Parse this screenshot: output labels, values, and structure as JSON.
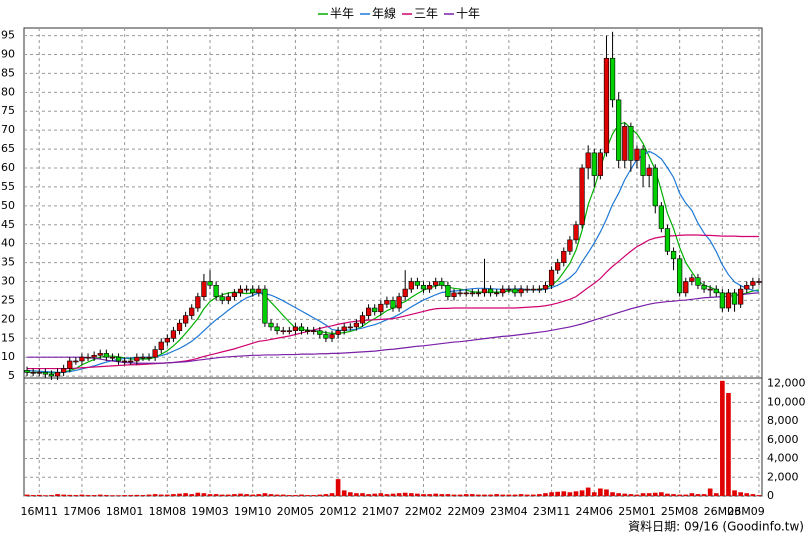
{
  "chart_data": [
    {
      "type": "candlestick",
      "open": [
        6.5,
        6,
        6,
        6,
        5.5,
        5,
        6,
        7,
        9,
        9,
        10,
        10,
        10.5,
        11,
        10,
        10,
        9,
        9,
        9,
        10,
        10,
        10,
        12,
        14,
        15,
        17,
        19,
        21,
        23,
        26,
        30,
        29,
        26,
        25,
        26,
        27,
        28,
        28,
        27,
        28,
        19,
        18,
        17,
        17,
        17,
        18,
        17,
        17,
        17,
        16,
        15,
        16,
        17,
        18,
        18,
        19,
        21,
        23,
        22,
        24,
        25,
        23,
        26,
        28,
        30,
        29,
        28,
        29,
        30,
        29,
        26,
        27,
        27,
        27,
        27,
        27,
        28,
        27,
        27,
        28,
        28,
        27,
        28,
        28,
        28,
        28,
        29,
        33,
        35,
        38,
        41,
        45,
        60,
        64,
        58,
        64,
        89,
        78,
        62,
        71,
        62,
        65,
        58,
        60,
        50,
        44,
        38,
        36,
        27,
        30,
        31,
        29,
        28,
        28,
        27,
        23,
        27,
        24,
        28,
        29,
        30
      ],
      "high": [
        7.5,
        7,
        7,
        7,
        6.5,
        7,
        8,
        10,
        10,
        11,
        11,
        11.5,
        12,
        12,
        11,
        11,
        10,
        10,
        11,
        11,
        11,
        13,
        15,
        16,
        18,
        20,
        22,
        24,
        27,
        32,
        33,
        30,
        27,
        27,
        28,
        29,
        29,
        29,
        29,
        29,
        20,
        19,
        18,
        18,
        19,
        19,
        18,
        18,
        18,
        17,
        17,
        18,
        19,
        19,
        20,
        22,
        24,
        24,
        25,
        26,
        26,
        27,
        33,
        31,
        31,
        30,
        30,
        31,
        31,
        30,
        28,
        28,
        28,
        28,
        28,
        36,
        29,
        28,
        29,
        29,
        29,
        29,
        29,
        29,
        29,
        30,
        34,
        36,
        39,
        42,
        46,
        61,
        66,
        65,
        65,
        95,
        96,
        80,
        72,
        72,
        66,
        66,
        61,
        61,
        51,
        45,
        39,
        37,
        31,
        32,
        32,
        30,
        29,
        29,
        28,
        28,
        28,
        29,
        30,
        31,
        31
      ],
      "low": [
        5,
        5,
        5,
        4.5,
        4,
        4,
        5,
        6,
        8,
        8,
        9,
        9,
        9.5,
        9,
        9,
        8,
        8,
        8,
        8,
        9,
        9,
        9,
        11,
        13,
        14,
        16,
        18,
        20,
        22,
        25,
        28,
        25,
        24,
        24,
        25,
        26,
        27,
        26,
        26,
        18,
        17,
        16,
        16,
        16,
        16,
        16,
        16,
        16,
        15,
        14,
        14,
        15,
        16,
        17,
        17,
        18,
        20,
        21,
        21,
        23,
        22,
        22,
        25,
        27,
        28,
        27,
        27,
        28,
        28,
        25,
        25,
        26,
        26,
        26,
        26,
        26,
        26,
        26,
        26,
        27,
        26,
        26,
        27,
        27,
        27,
        27,
        28,
        32,
        34,
        37,
        40,
        44,
        57,
        55,
        57,
        63,
        76,
        60,
        60,
        59,
        60,
        55,
        55,
        48,
        43,
        37,
        33,
        26,
        26,
        29,
        28,
        27,
        26,
        26,
        22,
        22,
        22,
        23,
        27,
        28,
        29
      ],
      "close": [
        6,
        6,
        6,
        5.5,
        5,
        6,
        7,
        9,
        9,
        10,
        10,
        10.5,
        11,
        10,
        10,
        9,
        9,
        9,
        10,
        10,
        10,
        12,
        14,
        15,
        17,
        19,
        21,
        23,
        26,
        30,
        29,
        26,
        25,
        26,
        27,
        28,
        28,
        27,
        28,
        19,
        18,
        17,
        17,
        17,
        18,
        17,
        17,
        17,
        16,
        15,
        16,
        17,
        18,
        18,
        19,
        21,
        23,
        22,
        24,
        25,
        23,
        26,
        28,
        30,
        29,
        28,
        29,
        30,
        29,
        26,
        27,
        27,
        27,
        27,
        27,
        28,
        27,
        27,
        28,
        28,
        27,
        28,
        28,
        28,
        28,
        29,
        33,
        35,
        38,
        41,
        45,
        60,
        64,
        58,
        64,
        89,
        78,
        62,
        71,
        62,
        65,
        58,
        60,
        50,
        44,
        38,
        36,
        27,
        30,
        31,
        29,
        28,
        28,
        27,
        23,
        27,
        24,
        28,
        29,
        30,
        30
      ],
      "up_color": "#e00000",
      "down_color": "#00d000",
      "ylim": [
        4.5,
        97
      ],
      "yticks": [
        5,
        10,
        15,
        20,
        25,
        30,
        35,
        40,
        45,
        50,
        55,
        60,
        65,
        70,
        75,
        80,
        85,
        90,
        95
      ],
      "grid": true,
      "legend": "top",
      "series": [
        {
          "name": "半年",
          "color": "#00b000",
          "values": [
            6,
            6,
            6,
            6,
            5.8,
            5.8,
            6,
            6.5,
            7,
            8,
            8.7,
            9.4,
            10,
            10.3,
            10.3,
            10.1,
            9.8,
            9.5,
            9.5,
            9.5,
            9.5,
            10,
            10.8,
            11.7,
            13,
            14.5,
            16.3,
            18.2,
            20.2,
            22.8,
            24.7,
            25.8,
            26.5,
            27,
            27.2,
            27,
            26.8,
            27,
            27.3,
            26.2,
            24.5,
            22.8,
            21,
            19.3,
            17.7,
            17.3,
            17.2,
            17,
            16.8,
            16.5,
            16.3,
            16.3,
            16.5,
            16.8,
            17.3,
            18.2,
            19.3,
            20.2,
            21.2,
            22.3,
            23,
            24,
            24.7,
            25.8,
            26.8,
            27.7,
            28.3,
            28.8,
            29.2,
            28.5,
            28.2,
            28,
            27.7,
            27.3,
            27.2,
            27.2,
            27.2,
            27.2,
            27.3,
            27.5,
            27.5,
            27.7,
            27.8,
            27.8,
            28,
            28.2,
            29,
            30.3,
            32.5,
            34.8,
            38.3,
            43.5,
            50.3,
            54.7,
            60,
            65,
            69,
            71.5,
            72,
            70.5,
            69,
            66.5,
            63,
            59.5,
            54,
            48,
            44,
            39,
            35,
            32.5,
            30.2,
            29,
            28.5,
            27.8,
            26.5,
            27,
            26.5,
            26.5,
            27,
            27.5,
            27.8
          ]
        },
        {
          "name": "年線",
          "color": "#1e78d7",
          "values": [
            6.5,
            6.4,
            6.3,
            6.2,
            6.1,
            6,
            6,
            6.2,
            6.5,
            6.9,
            7.3,
            7.7,
            8.2,
            8.7,
            9.1,
            9.4,
            9.7,
            9.8,
            9.9,
            10,
            10,
            10.1,
            10.4,
            10.9,
            11.6,
            12.3,
            13.2,
            14.2,
            15.5,
            17,
            18.5,
            19.9,
            21.1,
            22.4,
            23.6,
            24.7,
            25.7,
            26.3,
            27,
            26.8,
            26.4,
            25.7,
            24.9,
            24,
            23.1,
            22.2,
            21.3,
            20.4,
            19.5,
            18.5,
            17.3,
            17.1,
            17.1,
            17.2,
            17.4,
            17.7,
            18.2,
            18.6,
            19.2,
            19.9,
            20.5,
            21.3,
            22.3,
            23.3,
            24.2,
            25.1,
            25.8,
            26.5,
            27.1,
            27.3,
            27.5,
            27.6,
            27.9,
            28.1,
            28.2,
            28.2,
            28.1,
            28,
            27.9,
            28,
            28,
            28.1,
            27.8,
            27.8,
            27.8,
            27.9,
            28.4,
            29,
            29.9,
            31,
            32.5,
            35.2,
            37.6,
            40.2,
            43.1,
            46.5,
            50.4,
            53.3,
            56.9,
            59.7,
            62.3,
            63.4,
            64.4,
            63.6,
            62.4,
            60.1,
            57.5,
            53.3,
            50.7,
            48.8,
            45.4,
            42.8,
            40.8,
            37.9,
            34.4,
            31.8,
            29.9,
            28.9,
            28.2,
            27.7,
            27.4
          ]
        },
        {
          "name": "三年",
          "color": "#d0006f",
          "values": [
            7,
            7,
            7,
            7,
            7,
            7,
            7,
            7,
            7.1,
            7.2,
            7.3,
            7.4,
            7.5,
            7.6,
            7.7,
            7.8,
            7.9,
            8,
            8,
            8.1,
            8.2,
            8.3,
            8.4,
            8.5,
            8.6,
            8.8,
            9,
            9.3,
            9.7,
            10.2,
            10.6,
            11,
            11.4,
            11.8,
            12.2,
            12.7,
            13.2,
            13.7,
            14.2,
            14.4,
            14.7,
            15,
            15.3,
            15.6,
            16,
            16.4,
            16.8,
            17.2,
            17.6,
            18,
            18.3,
            18.7,
            19,
            19.3,
            19.5,
            19.7,
            19.8,
            19.9,
            20,
            20.1,
            20.2,
            20.5,
            20.9,
            21.3,
            21.7,
            22.1,
            22.5,
            22.8,
            22.9,
            22.9,
            23,
            23,
            23,
            23,
            23,
            23,
            23,
            23,
            23,
            23,
            23,
            23.1,
            23.2,
            23.3,
            23.4,
            23.6,
            23.9,
            24.3,
            24.8,
            25.3,
            26,
            27.2,
            28.4,
            29.5,
            30.8,
            32.5,
            34,
            35.3,
            36.7,
            38,
            39.2,
            40.1,
            41,
            41.5,
            41.8,
            42,
            42.1,
            42.2,
            42.3,
            42.3,
            42.3,
            42.2,
            42.2,
            42.1,
            42,
            42,
            42,
            41.9,
            41.9,
            41.9,
            41.9
          ]
        },
        {
          "name": "十年",
          "color": "#7a1fa8",
          "values": [
            10,
            10,
            10,
            10,
            10,
            10,
            10,
            10,
            10,
            10,
            9.9,
            9.7,
            9.5,
            9.2,
            9,
            8.8,
            8.6,
            8.5,
            8.4,
            8.4,
            8.4,
            8.4,
            8.4,
            8.5,
            8.6,
            8.7,
            8.8,
            9,
            9.2,
            9.4,
            9.6,
            9.8,
            10,
            10.1,
            10.2,
            10.3,
            10.4,
            10.5,
            10.5,
            10.6,
            10.6,
            10.6,
            10.7,
            10.7,
            10.7,
            10.8,
            10.8,
            10.8,
            10.9,
            10.9,
            11,
            11,
            11.1,
            11.2,
            11.3,
            11.4,
            11.5,
            11.6,
            11.8,
            12,
            12.1,
            12.3,
            12.5,
            12.7,
            12.9,
            13,
            13.2,
            13.4,
            13.6,
            13.8,
            14,
            14.1,
            14.3,
            14.5,
            14.7,
            14.9,
            15.1,
            15.3,
            15.5,
            15.6,
            15.8,
            16,
            16.2,
            16.4,
            16.6,
            16.8,
            17.1,
            17.4,
            17.7,
            18,
            18.4,
            18.8,
            19.3,
            19.8,
            20.3,
            20.8,
            21.3,
            21.8,
            22.3,
            22.8,
            23.2,
            23.6,
            24,
            24.3,
            24.5,
            24.7,
            24.8,
            25,
            25.1,
            25.3,
            25.5,
            25.7,
            25.8,
            25.9,
            26,
            26.1,
            26.3,
            26.5,
            26.7,
            26.9,
            27
          ]
        }
      ]
    },
    {
      "type": "bar",
      "categories": [
        null,
        null,
        "16M11",
        null,
        null,
        null,
        null,
        null,
        null,
        "17M06",
        null,
        null,
        null,
        null,
        null,
        null,
        "18M01",
        null,
        null,
        null,
        null,
        null,
        null,
        "18M08",
        null,
        null,
        null,
        null,
        null,
        null,
        "19M03",
        null,
        null,
        null,
        null,
        null,
        null,
        "19M10",
        null,
        null,
        null,
        null,
        null,
        null,
        "20M05",
        null,
        null,
        null,
        null,
        null,
        null,
        "20M12",
        null,
        null,
        null,
        null,
        null,
        null,
        "21M07",
        null,
        null,
        null,
        null,
        null,
        null,
        "22M02",
        null,
        null,
        null,
        null,
        null,
        null,
        "22M09",
        null,
        null,
        null,
        null,
        null,
        null,
        "23M04",
        null,
        null,
        null,
        null,
        null,
        null,
        "23M11",
        null,
        null,
        null,
        null,
        null,
        null,
        "24M06",
        null,
        null,
        null,
        null,
        null,
        null,
        "25M01",
        null,
        null,
        null,
        null,
        null,
        null,
        "25M08",
        null,
        null,
        null,
        null,
        null,
        null,
        "26M03",
        null,
        null,
        null,
        null,
        null,
        "26M09"
      ],
      "values": [
        150,
        100,
        120,
        80,
        100,
        200,
        150,
        120,
        100,
        150,
        100,
        100,
        150,
        100,
        80,
        80,
        100,
        100,
        120,
        100,
        150,
        200,
        150,
        150,
        200,
        250,
        300,
        200,
        350,
        300,
        200,
        200,
        150,
        150,
        200,
        250,
        200,
        150,
        200,
        300,
        200,
        150,
        150,
        100,
        100,
        150,
        100,
        100,
        150,
        200,
        300,
        1800,
        600,
        400,
        300,
        300,
        200,
        250,
        300,
        200,
        250,
        300,
        350,
        300,
        250,
        200,
        200,
        250,
        200,
        200,
        150,
        150,
        200,
        200,
        150,
        150,
        150,
        200,
        150,
        150,
        150,
        200,
        150,
        150,
        200,
        300,
        400,
        450,
        500,
        400,
        500,
        600,
        900,
        400,
        800,
        700,
        400,
        300,
        250,
        200,
        150,
        300,
        300,
        350,
        400,
        250,
        200,
        150,
        150,
        300,
        200,
        200,
        800,
        300,
        12300,
        11000,
        600,
        400,
        300,
        200,
        100
      ],
      "color": "#e00000",
      "ylim": [
        0,
        12600
      ],
      "yticks": [
        0,
        {
          "value": 2000,
          "label": "2,000"
        },
        {
          "value": 4000,
          "label": "4,000"
        },
        {
          "value": 6000,
          "label": "6,000"
        },
        {
          "value": 8000,
          "label": "8,000"
        },
        {
          "value": 10000,
          "label": "10,000"
        },
        {
          "value": 12000,
          "label": "12,000"
        }
      ],
      "grid": true
    }
  ],
  "footer": "資料日期: 09/16  (Goodinfo.tw)"
}
